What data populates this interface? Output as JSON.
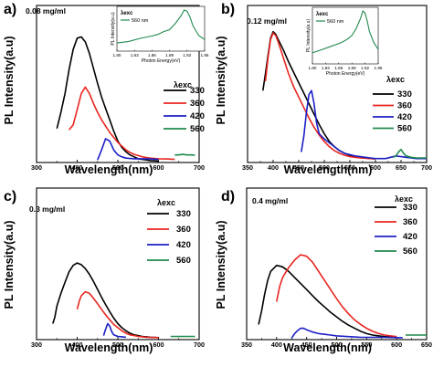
{
  "chart_data": [
    {
      "panel": "a)",
      "type": "line",
      "concentration": "0.08 mg/ml",
      "xlabel": "Wavelength(nm)",
      "ylabel": "PL Intensity(a.u)",
      "xlim": [
        300,
        700
      ],
      "ylim": [
        0,
        1.25
      ],
      "xticks": [
        300,
        400,
        500,
        600,
        700
      ],
      "xtick_labels": [
        "300",
        "400",
        "500",
        "600",
        "700"
      ],
      "legend_title": "λexc",
      "series": [
        {
          "name": "330",
          "color": "#000000",
          "x": [
            350,
            360,
            370,
            380,
            390,
            400,
            410,
            420,
            430,
            440,
            450,
            460,
            470,
            480,
            490,
            500,
            510,
            520,
            530,
            540,
            550,
            560,
            570,
            580,
            590,
            600
          ],
          "y": [
            0.27,
            0.4,
            0.55,
            0.74,
            0.9,
            0.99,
            1.0,
            0.96,
            0.87,
            0.75,
            0.63,
            0.52,
            0.43,
            0.34,
            0.25,
            0.17,
            0.12,
            0.085,
            0.06,
            0.045,
            0.03,
            0.025,
            0.02,
            0.015,
            0.013,
            0.01
          ]
        },
        {
          "name": "360",
          "color": "#e8251f",
          "x": [
            380,
            390,
            400,
            410,
            420,
            430,
            440,
            450,
            460,
            470,
            480,
            490,
            500,
            510,
            520,
            530,
            540,
            550,
            560,
            570,
            580,
            590,
            600,
            620,
            640
          ],
          "y": [
            0.26,
            0.3,
            0.42,
            0.55,
            0.6,
            0.55,
            0.47,
            0.4,
            0.34,
            0.29,
            0.24,
            0.2,
            0.16,
            0.13,
            0.1,
            0.08,
            0.065,
            0.055,
            0.045,
            0.04,
            0.035,
            0.033,
            0.03,
            0.028,
            0.025
          ]
        },
        {
          "name": "420",
          "color": "#1b1fc4",
          "x": [
            450,
            460,
            470,
            480,
            490,
            500,
            510,
            520,
            540,
            560,
            580,
            600
          ],
          "y": [
            0.02,
            0.1,
            0.19,
            0.17,
            0.1,
            0.06,
            0.045,
            0.035,
            0.03,
            0.03,
            0.028,
            0.025
          ]
        },
        {
          "name": "560",
          "color": "#1f8a4c",
          "x": [
            640,
            650,
            660,
            670,
            680,
            690
          ],
          "y": [
            0.06,
            0.06,
            0.065,
            0.06,
            0.06,
            0.058
          ]
        }
      ],
      "inset": {
        "xlabel": "Photon Energy(eV)",
        "ylabel": "PL Intensity(a.u)",
        "legend_title": "λexc",
        "legend_entry": "560 nm",
        "xlim": [
          1.8,
          1.95
        ],
        "xticks": [
          1.8,
          1.83,
          1.86,
          1.89,
          1.92,
          1.95
        ],
        "xtick_labels": [
          "1.80",
          "1.83",
          "1.86",
          "1.89",
          "1.92",
          "1.95"
        ],
        "series": {
          "color": "#1f8a4c",
          "x": [
            1.8,
            1.82,
            1.84,
            1.86,
            1.87,
            1.88,
            1.89,
            1.9,
            1.91,
            1.915,
            1.92,
            1.925,
            1.93,
            1.94,
            1.95
          ],
          "y": [
            0.16,
            0.2,
            0.28,
            0.34,
            0.38,
            0.45,
            0.5,
            0.66,
            0.86,
            1.0,
            0.97,
            0.82,
            0.6,
            0.35,
            0.25
          ]
        }
      }
    },
    {
      "panel": "b)",
      "type": "line",
      "concentration": "0.12 mg/ml",
      "xlabel": "Wavelength(nm)",
      "ylabel": "PL Intensity(a.u)",
      "xlim": [
        350,
        700
      ],
      "ylim": [
        0,
        1.2
      ],
      "xticks": [
        350,
        400,
        450,
        500,
        550,
        600,
        650,
        700
      ],
      "xtick_labels": [
        "350",
        "400",
        "450",
        "500",
        "550",
        "600",
        "650",
        "700"
      ],
      "legend_title": "λexc",
      "series": [
        {
          "name": "330",
          "color": "#000000",
          "x": [
            380,
            385,
            390,
            395,
            400,
            405,
            410,
            420,
            430,
            440,
            450,
            460,
            470,
            480,
            490,
            500,
            510,
            520,
            530,
            540,
            550,
            560,
            570,
            580,
            590,
            600
          ],
          "y": [
            0.55,
            0.68,
            0.82,
            0.95,
            1.0,
            0.98,
            0.94,
            0.86,
            0.77,
            0.69,
            0.61,
            0.53,
            0.45,
            0.37,
            0.29,
            0.22,
            0.16,
            0.12,
            0.09,
            0.07,
            0.055,
            0.045,
            0.04,
            0.035,
            0.03,
            0.028
          ]
        },
        {
          "name": "360",
          "color": "#e8251f",
          "x": [
            385,
            390,
            395,
            400,
            405,
            410,
            420,
            430,
            440,
            450,
            460,
            470,
            480,
            490,
            500,
            510,
            520,
            530,
            540,
            550,
            560,
            570,
            580,
            590,
            600
          ],
          "y": [
            0.62,
            0.8,
            0.94,
            0.99,
            0.97,
            0.92,
            0.8,
            0.68,
            0.58,
            0.5,
            0.42,
            0.34,
            0.27,
            0.21,
            0.16,
            0.12,
            0.09,
            0.07,
            0.055,
            0.045,
            0.04,
            0.035,
            0.033,
            0.03,
            0.028
          ]
        },
        {
          "name": "420",
          "color": "#1b1fc4",
          "x": [
            455,
            460,
            465,
            470,
            475,
            480,
            485,
            490,
            500,
            510,
            520,
            530,
            540,
            550,
            560,
            570,
            580,
            590,
            600,
            620,
            640,
            660,
            680,
            700
          ],
          "y": [
            0.08,
            0.2,
            0.38,
            0.52,
            0.55,
            0.45,
            0.3,
            0.22,
            0.18,
            0.15,
            0.12,
            0.09,
            0.07,
            0.06,
            0.05,
            0.045,
            0.04,
            0.035,
            0.03,
            0.03,
            0.05,
            0.04,
            0.03,
            0.03
          ]
        },
        {
          "name": "560",
          "color": "#1f8a4c",
          "x": [
            635,
            640,
            645,
            650,
            655,
            660,
            670,
            680,
            690,
            700
          ],
          "y": [
            0.04,
            0.05,
            0.08,
            0.1,
            0.07,
            0.05,
            0.04,
            0.035,
            0.035,
            0.035
          ]
        }
      ],
      "inset": {
        "xlabel": "Photon Energy(eV)",
        "ylabel": "PL Intensity(a.u)",
        "legend_title": "λexc",
        "legend_entry": "560 nm",
        "xlim": [
          1.8,
          1.95
        ],
        "xticks": [
          1.8,
          1.83,
          1.86,
          1.89,
          1.92,
          1.95
        ],
        "xtick_labels": [
          "1.80",
          "1.83",
          "1.86",
          "1.89",
          "1.92",
          "1.95"
        ],
        "series": {
          "color": "#1f8a4c",
          "x": [
            1.8,
            1.82,
            1.84,
            1.86,
            1.87,
            1.88,
            1.89,
            1.9,
            1.91,
            1.915,
            1.92,
            1.925,
            1.93,
            1.94,
            1.95
          ],
          "y": [
            0.18,
            0.24,
            0.3,
            0.36,
            0.4,
            0.45,
            0.52,
            0.66,
            0.86,
            1.0,
            0.96,
            0.8,
            0.6,
            0.38,
            0.25
          ]
        }
      }
    },
    {
      "panel": "c)",
      "type": "line",
      "concentration": "0.3 mg/ml",
      "xlabel": "Wavelength(nm)",
      "ylabel": "PL Intensity(a.u)",
      "xlim": [
        300,
        700
      ],
      "ylim": [
        0,
        1.9
      ],
      "xticks": [
        300,
        400,
        500,
        600,
        700
      ],
      "xtick_labels": [
        "300",
        "400",
        "500",
        "600",
        "700"
      ],
      "legend_title": "λexc",
      "series": [
        {
          "name": "330",
          "color": "#000000",
          "x": [
            340,
            345,
            350,
            360,
            370,
            380,
            390,
            400,
            410,
            420,
            430,
            440,
            450,
            460,
            470,
            480,
            490,
            500,
            510,
            520,
            530,
            540,
            550,
            560,
            570,
            580,
            590,
            600
          ],
          "y": [
            0.2,
            0.28,
            0.42,
            0.58,
            0.72,
            0.85,
            0.93,
            0.96,
            0.94,
            0.89,
            0.82,
            0.73,
            0.63,
            0.53,
            0.44,
            0.35,
            0.27,
            0.2,
            0.15,
            0.11,
            0.08,
            0.06,
            0.05,
            0.04,
            0.035,
            0.03,
            0.028,
            0.025
          ]
        },
        {
          "name": "360",
          "color": "#e8251f",
          "x": [
            400,
            405,
            410,
            420,
            430,
            440,
            450,
            460,
            470,
            480,
            490,
            500,
            510,
            520,
            530,
            540,
            550,
            560,
            570,
            580,
            590,
            600
          ],
          "y": [
            0.38,
            0.48,
            0.55,
            0.6,
            0.58,
            0.52,
            0.45,
            0.38,
            0.31,
            0.25,
            0.19,
            0.15,
            0.11,
            0.08,
            0.06,
            0.05,
            0.04,
            0.035,
            0.03,
            0.028,
            0.026,
            0.025
          ]
        },
        {
          "name": "420",
          "color": "#1b1fc4",
          "x": [
            465,
            470,
            475,
            480,
            485,
            490,
            500,
            510,
            520
          ],
          "y": [
            0.05,
            0.13,
            0.2,
            0.17,
            0.1,
            0.06,
            0.04,
            0.035,
            0.03
          ]
        },
        {
          "name": "560",
          "color": "#1f8a4c",
          "x": [
            630,
            640,
            650,
            660,
            670,
            680,
            690
          ],
          "y": [
            0.04,
            0.04,
            0.04,
            0.04,
            0.04,
            0.04,
            0.04
          ]
        }
      ]
    },
    {
      "panel": "d)",
      "type": "line",
      "concentration": "0.4 mg/ml",
      "xlabel": "Wavelength(nm)",
      "ylabel": "PL Intensity(a.u)",
      "xlim": [
        350,
        650
      ],
      "ylim": [
        0,
        2.0
      ],
      "xticks": [
        350,
        400,
        450,
        500,
        550,
        600,
        650
      ],
      "xtick_labels": [
        "350",
        "400",
        "450",
        "500",
        "550",
        "600",
        "650"
      ],
      "legend_title": "λexc",
      "series": [
        {
          "name": "330",
          "color": "#000000",
          "x": [
            370,
            375,
            380,
            385,
            390,
            400,
            410,
            420,
            430,
            440,
            450,
            460,
            470,
            480,
            490,
            500,
            510,
            520,
            530,
            540,
            550,
            560,
            570,
            580,
            590,
            600
          ],
          "y": [
            0.2,
            0.38,
            0.6,
            0.78,
            0.9,
            0.98,
            0.96,
            0.9,
            0.82,
            0.74,
            0.66,
            0.58,
            0.5,
            0.43,
            0.36,
            0.3,
            0.24,
            0.19,
            0.15,
            0.11,
            0.08,
            0.06,
            0.05,
            0.04,
            0.035,
            0.03
          ]
        },
        {
          "name": "360",
          "color": "#e8251f",
          "x": [
            400,
            405,
            410,
            420,
            430,
            440,
            450,
            460,
            470,
            480,
            490,
            500,
            510,
            520,
            530,
            540,
            550,
            560,
            570,
            580,
            590,
            600
          ],
          "y": [
            0.5,
            0.7,
            0.82,
            0.95,
            1.05,
            1.12,
            1.1,
            1.02,
            0.9,
            0.78,
            0.66,
            0.54,
            0.43,
            0.34,
            0.26,
            0.2,
            0.15,
            0.11,
            0.08,
            0.06,
            0.05,
            0.04
          ]
        },
        {
          "name": "420",
          "color": "#1b1fc4",
          "x": [
            425,
            430,
            435,
            440,
            445,
            450,
            460,
            470,
            480,
            490,
            500,
            510,
            520,
            530,
            540,
            550,
            560,
            570,
            580,
            590,
            600,
            610
          ],
          "y": [
            0.02,
            0.08,
            0.12,
            0.15,
            0.15,
            0.13,
            0.1,
            0.08,
            0.07,
            0.06,
            0.05,
            0.045,
            0.04,
            0.035,
            0.03,
            0.03,
            0.03,
            0.03,
            0.03,
            0.028,
            0.026,
            0.025
          ]
        },
        {
          "name": "560",
          "color": "#1f8a4c",
          "x": [
            615,
            625,
            635,
            645,
            650
          ],
          "y": [
            0.06,
            0.06,
            0.06,
            0.06,
            0.06
          ]
        }
      ]
    }
  ]
}
